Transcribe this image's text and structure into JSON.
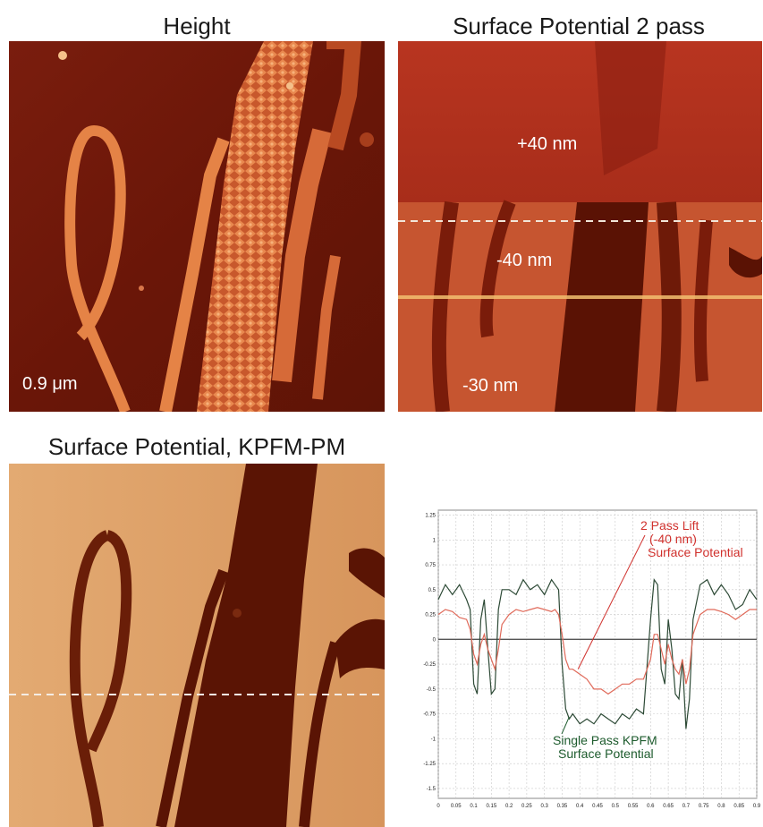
{
  "panels": {
    "height": {
      "title": "Height",
      "scale_label": "0.9 μm"
    },
    "sp2pass": {
      "title": "Surface Potential 2 pass",
      "labels": [
        "+40 nm",
        "-40 nm",
        "-30 nm"
      ]
    },
    "kpfm": {
      "title": "Surface Potential, KPFM-PM"
    }
  },
  "chart_data": {
    "type": "line",
    "title": "",
    "xlabel": "",
    "ylabel": "",
    "xlim": [
      0,
      0.9
    ],
    "ylim": [
      -1.6,
      1.3
    ],
    "x_ticks": [
      "0",
      "0.05",
      "0.1",
      "0.15",
      "0.2",
      "0.25",
      "0.3",
      "0.35",
      "0.4",
      "0.45",
      "0.5",
      "0.55",
      "0.6",
      "0.65",
      "0.7",
      "0.75",
      "0.8",
      "0.85",
      "0.9"
    ],
    "y_ticks": [
      "1.25",
      "1",
      "0.75",
      "0.5",
      "0.25",
      "0",
      "-0.25",
      "-0.5",
      "-0.75",
      "-1",
      "-1.25",
      "-1.5"
    ],
    "grid": true,
    "annotations": [
      {
        "lines": [
          "2 Pass Lift",
          "(-40 nm)",
          "Surface Potential"
        ],
        "color": "#d0312d"
      },
      {
        "lines": [
          "Single Pass KPFM",
          "Surface Potential"
        ],
        "color": "#1e5c2e"
      }
    ],
    "series": [
      {
        "name": "Single Pass KPFM Surface Potential",
        "color": "#2d4a36",
        "x": [
          0,
          0.02,
          0.04,
          0.06,
          0.08,
          0.09,
          0.1,
          0.11,
          0.12,
          0.13,
          0.14,
          0.15,
          0.16,
          0.17,
          0.18,
          0.2,
          0.22,
          0.24,
          0.26,
          0.28,
          0.3,
          0.32,
          0.33,
          0.34,
          0.35,
          0.36,
          0.37,
          0.38,
          0.4,
          0.42,
          0.44,
          0.46,
          0.48,
          0.5,
          0.52,
          0.54,
          0.56,
          0.58,
          0.6,
          0.61,
          0.62,
          0.63,
          0.64,
          0.65,
          0.66,
          0.67,
          0.68,
          0.69,
          0.7,
          0.71,
          0.72,
          0.74,
          0.76,
          0.78,
          0.8,
          0.82,
          0.84,
          0.86,
          0.88,
          0.9
        ],
        "y": [
          0.4,
          0.55,
          0.45,
          0.55,
          0.4,
          0.3,
          -0.45,
          -0.55,
          0.2,
          0.4,
          -0.1,
          -0.55,
          -0.5,
          0.3,
          0.5,
          0.5,
          0.45,
          0.6,
          0.5,
          0.55,
          0.45,
          0.6,
          0.55,
          0.5,
          -0.25,
          -0.7,
          -0.8,
          -0.75,
          -0.85,
          -0.8,
          -0.85,
          -0.75,
          -0.8,
          -0.85,
          -0.75,
          -0.8,
          -0.7,
          -0.75,
          0.2,
          0.6,
          0.55,
          -0.3,
          -0.45,
          0.2,
          -0.1,
          -0.55,
          -0.6,
          -0.2,
          -0.9,
          -0.6,
          0.2,
          0.55,
          0.6,
          0.45,
          0.55,
          0.45,
          0.3,
          0.35,
          0.5,
          0.4
        ]
      },
      {
        "name": "2 Pass Lift (-40 nm) Surface Potential",
        "color": "#e06a5a",
        "x": [
          0,
          0.02,
          0.04,
          0.06,
          0.08,
          0.09,
          0.1,
          0.11,
          0.12,
          0.13,
          0.14,
          0.15,
          0.16,
          0.17,
          0.18,
          0.2,
          0.22,
          0.24,
          0.26,
          0.28,
          0.3,
          0.32,
          0.33,
          0.34,
          0.35,
          0.36,
          0.37,
          0.38,
          0.4,
          0.42,
          0.44,
          0.46,
          0.48,
          0.5,
          0.52,
          0.54,
          0.56,
          0.58,
          0.6,
          0.61,
          0.62,
          0.63,
          0.64,
          0.65,
          0.66,
          0.67,
          0.68,
          0.69,
          0.7,
          0.71,
          0.72,
          0.74,
          0.76,
          0.78,
          0.8,
          0.82,
          0.84,
          0.86,
          0.88,
          0.9
        ],
        "y": [
          0.25,
          0.3,
          0.28,
          0.22,
          0.2,
          0.1,
          -0.15,
          -0.25,
          -0.05,
          0.05,
          -0.1,
          -0.2,
          -0.3,
          -0.1,
          0.15,
          0.25,
          0.3,
          0.28,
          0.3,
          0.32,
          0.3,
          0.28,
          0.3,
          0.25,
          0.05,
          -0.2,
          -0.3,
          -0.3,
          -0.35,
          -0.4,
          -0.5,
          -0.5,
          -0.55,
          -0.5,
          -0.45,
          -0.45,
          -0.4,
          -0.4,
          -0.2,
          0.05,
          0.05,
          -0.1,
          -0.25,
          -0.05,
          -0.2,
          -0.3,
          -0.35,
          -0.2,
          -0.45,
          -0.3,
          0.05,
          0.25,
          0.3,
          0.3,
          0.28,
          0.25,
          0.2,
          0.25,
          0.3,
          0.3
        ]
      }
    ]
  }
}
